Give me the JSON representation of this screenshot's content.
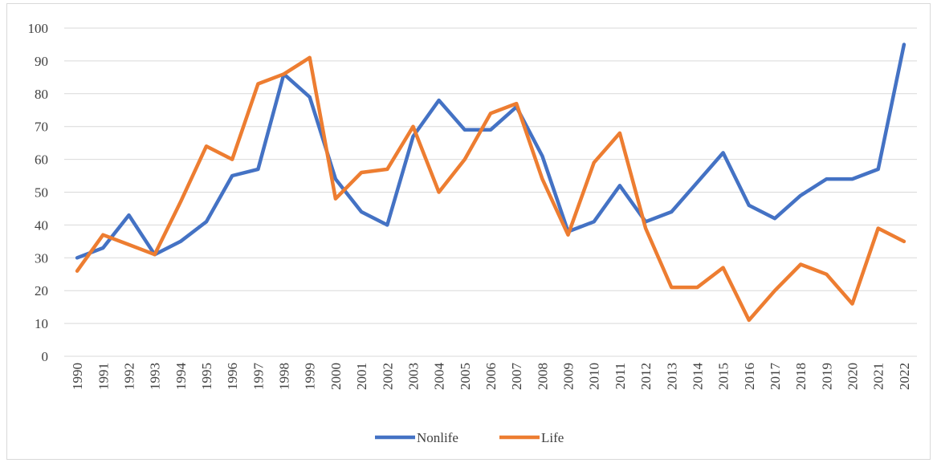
{
  "chart_data": {
    "type": "line",
    "categories": [
      "1990",
      "1991",
      "1992",
      "1993",
      "1994",
      "1995",
      "1996",
      "1997",
      "1998",
      "1999",
      "2000",
      "2001",
      "2002",
      "2003",
      "2004",
      "2005",
      "2006",
      "2007",
      "2008",
      "2009",
      "2010",
      "2011",
      "2012",
      "2013",
      "2014",
      "2015",
      "2016",
      "2017",
      "2018",
      "2019",
      "2020",
      "2021",
      "2022"
    ],
    "series": [
      {
        "name": "Nonlife",
        "color": "#4472c4",
        "values": [
          30,
          33,
          43,
          31,
          35,
          41,
          55,
          57,
          86,
          79,
          54,
          44,
          40,
          67,
          78,
          69,
          69,
          76,
          61,
          38,
          41,
          52,
          41,
          44,
          53,
          62,
          46,
          42,
          49,
          54,
          54,
          57,
          95
        ]
      },
      {
        "name": "Life",
        "color": "#ed7d31",
        "values": [
          26,
          37,
          34,
          31,
          47,
          64,
          60,
          83,
          86,
          91,
          48,
          56,
          57,
          70,
          50,
          60,
          74,
          77,
          54,
          37,
          59,
          68,
          39,
          21,
          21,
          27,
          11,
          20,
          28,
          25,
          16,
          39,
          35
        ]
      }
    ],
    "ylim": [
      0,
      100
    ],
    "yticks": [
      0,
      10,
      20,
      30,
      40,
      50,
      60,
      70,
      80,
      90,
      100
    ],
    "grid": true,
    "legend": "bottom"
  }
}
